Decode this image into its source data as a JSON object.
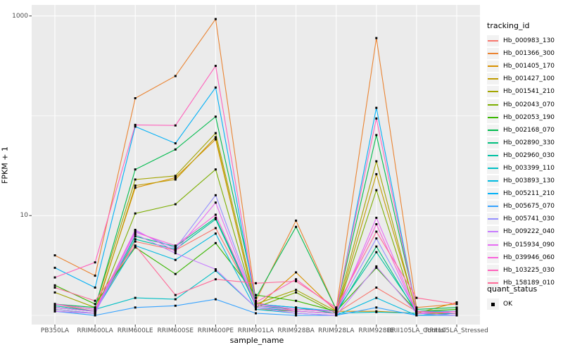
{
  "chart_data": {
    "type": "line",
    "title": "",
    "xlabel": "sample_name",
    "ylabel": "FPKM + 1",
    "y_scale": "log10",
    "ylim": [
      0.81,
      1290
    ],
    "grid": true,
    "panel_bg": "#EBEBEB",
    "gridline_color": "#FFFFFF",
    "point_color": "#000000",
    "axis_text_color": "#4D4D4D",
    "y_ticks": [
      {
        "label": "1000",
        "value": 1000
      },
      {
        "label": "10",
        "value": 10
      }
    ],
    "y_major_gridlines": [
      10,
      1000
    ],
    "y_minor_gridlines": [
      1,
      100
    ],
    "categories": [
      "PB350LA",
      "RRIM600LA",
      "RRIM600LE",
      "RRIM600SE",
      "RRIM600PE",
      "RRIM901LA",
      "RRIM928BA",
      "RRIM928LA",
      "RRIM928LE",
      "RRII105LA_Control",
      "RRII105LA_Stressed"
    ],
    "legend_title": "tracking_id",
    "legend_position": "right",
    "series": [
      {
        "name": "Hb_000983_130",
        "color": "#F8766D",
        "values": [
          1.3,
          1.1,
          5.5,
          4.5,
          7.5,
          1.35,
          1.1,
          1.05,
          1.9,
          1.1,
          1.05
        ]
      },
      {
        "name": "Hb_001366_300",
        "color": "#EA8331",
        "values": [
          4.0,
          2.5,
          150,
          250,
          930,
          1.4,
          8.9,
          1.15,
          600,
          1.2,
          1.3
        ]
      },
      {
        "name": "Hb_001405_170",
        "color": "#D89000",
        "values": [
          1.2,
          1.1,
          19,
          24,
          58,
          1.2,
          2.7,
          1.1,
          1.1,
          1.05,
          1.35
        ]
      },
      {
        "name": "Hb_001427_100",
        "color": "#C09B00",
        "values": [
          1.15,
          1.05,
          20,
          23,
          61,
          1.15,
          1.1,
          1.05,
          26,
          1.1,
          1.1
        ]
      },
      {
        "name": "Hb_001541_210",
        "color": "#A3A500",
        "values": [
          1.7,
          1.2,
          23,
          25,
          67,
          1.3,
          1.8,
          1.1,
          35,
          1.05,
          1.05
        ]
      },
      {
        "name": "Hb_002043_070",
        "color": "#7CAE00",
        "values": [
          1.1,
          1.05,
          10.5,
          13,
          29,
          1.2,
          1.7,
          1.05,
          18,
          1.0,
          1.05
        ]
      },
      {
        "name": "Hb_002053_190",
        "color": "#39B600",
        "values": [
          2.0,
          1.3,
          4.8,
          2.6,
          5.3,
          1.6,
          1.4,
          1.1,
          3.0,
          1.1,
          1.15
        ]
      },
      {
        "name": "Hb_002168_070",
        "color": "#00BB4E",
        "values": [
          1.3,
          1.2,
          29,
          46,
          98,
          1.5,
          7.7,
          1.15,
          64,
          1.15,
          1.2
        ]
      },
      {
        "name": "Hb_002890_330",
        "color": "#00BF7D",
        "values": [
          1.2,
          1.1,
          6.2,
          4.9,
          9.5,
          1.3,
          1.2,
          1.05,
          4.9,
          1.05,
          1.1
        ]
      },
      {
        "name": "Hb_002960_030",
        "color": "#00C1A3",
        "values": [
          1.25,
          1.1,
          5.8,
          4.6,
          9.2,
          1.25,
          1.15,
          1.1,
          4.3,
          1.1,
          1.05
        ]
      },
      {
        "name": "Hb_003399_110",
        "color": "#00BFC4",
        "values": [
          1.3,
          1.15,
          1.5,
          1.45,
          2.8,
          1.2,
          1.1,
          1.05,
          1.08,
          1.05,
          1.0
        ]
      },
      {
        "name": "Hb_003893_130",
        "color": "#00BAE0",
        "values": [
          1.2,
          1.1,
          5.0,
          3.6,
          6.6,
          1.15,
          1.05,
          1.0,
          1.5,
          1.0,
          1.05
        ]
      },
      {
        "name": "Hb_005211_210",
        "color": "#00B0F6",
        "values": [
          3.0,
          1.9,
          78,
          53,
          192,
          1.3,
          1.2,
          1.1,
          120,
          1.1,
          1.1
        ]
      },
      {
        "name": "Hb_005675_070",
        "color": "#35A2FF",
        "values": [
          1.1,
          1.0,
          1.2,
          1.25,
          1.45,
          1.05,
          1.0,
          1.0,
          1.2,
          1.0,
          1.0
        ]
      },
      {
        "name": "Hb_005741_030",
        "color": "#9590FF",
        "values": [
          1.15,
          1.05,
          7.0,
          4.7,
          16,
          1.3,
          1.15,
          1.1,
          5.9,
          1.1,
          1.05
        ]
      },
      {
        "name": "Hb_009222_040",
        "color": "#C77CFF",
        "values": [
          1.1,
          1.05,
          6.5,
          4.2,
          2.9,
          1.2,
          1.05,
          1.0,
          3.1,
          1.05,
          1.0
        ]
      },
      {
        "name": "Hb_015934_090",
        "color": "#E76BF3",
        "values": [
          1.2,
          1.1,
          7.2,
          4.4,
          13.5,
          1.25,
          1.1,
          1.05,
          9.5,
          1.1,
          1.05
        ]
      },
      {
        "name": "Hb_039946_060",
        "color": "#FA62DB",
        "values": [
          1.3,
          1.15,
          6.8,
          5.0,
          10.2,
          1.3,
          1.15,
          1.1,
          8.2,
          1.05,
          1.1
        ]
      },
      {
        "name": "Hb_103225_030",
        "color": "#FF62BC",
        "values": [
          2.4,
          3.4,
          81,
          80,
          316,
          1.35,
          2.3,
          1.15,
          94,
          1.1,
          1.05
        ]
      },
      {
        "name": "Hb_158189_010",
        "color": "#FF6A98",
        "values": [
          1.9,
          1.4,
          5.0,
          1.6,
          2.3,
          2.1,
          2.2,
          1.2,
          6.9,
          1.5,
          1.3
        ]
      }
    ],
    "quant_legend": {
      "title": "quant_status",
      "items": [
        "OK"
      ]
    }
  }
}
